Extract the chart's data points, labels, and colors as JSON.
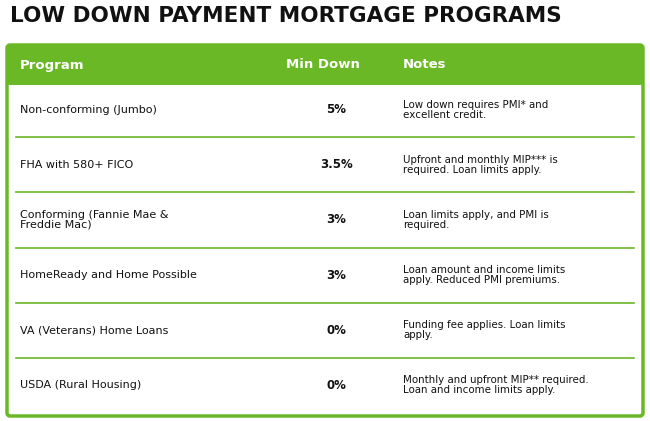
{
  "title": "LOW DOWN PAYMENT MORTGAGE PROGRAMS",
  "title_fontsize": 15.5,
  "title_color": "#111111",
  "header_bg": "#6ab825",
  "header_text_color": "#ffffff",
  "header_labels": [
    "Program",
    "Min Down",
    "Notes"
  ],
  "divider_color": "#6ab825",
  "outer_border_color": "#6ab825",
  "fig_w": 6.5,
  "fig_h": 4.21,
  "dpi": 100,
  "rows": [
    {
      "program": "Non-conforming (Jumbo)",
      "min_down": "5%",
      "notes": "Low down requires PMI* and\nexcellent credit."
    },
    {
      "program": "FHA with 580+ FICO",
      "min_down": "3.5%",
      "notes": "Upfront and monthly MIP*** is\nrequired. Loan limits apply."
    },
    {
      "program": "Conforming (Fannie Mae &\nFreddie Mac)",
      "min_down": "3%",
      "notes": "Loan limits apply, and PMI is\nrequired."
    },
    {
      "program": "HomeReady and Home Possible",
      "min_down": "3%",
      "notes": "Loan amount and income limits\napply. Reduced PMI premiums."
    },
    {
      "program": "VA (Veterans) Home Loans",
      "min_down": "0%",
      "notes": "Funding fee applies. Loan limits\napply."
    },
    {
      "program": "USDA (Rural Housing)",
      "min_down": "0%",
      "notes": "Monthly and upfront MIP** required.\nLoan and income limits apply."
    }
  ]
}
